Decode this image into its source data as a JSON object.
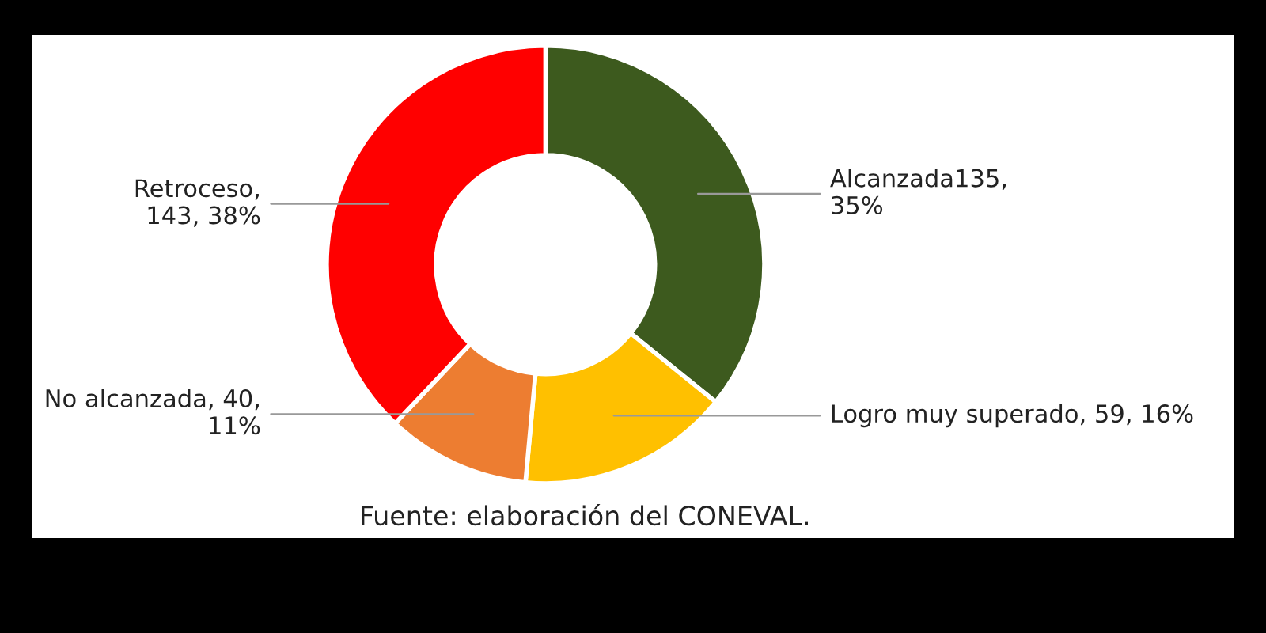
{
  "chart_data": {
    "type": "donut",
    "categories": [
      "Alcanzada",
      "Logro muy superado",
      "No alcanzada",
      "Retroceso"
    ],
    "values": [
      135,
      59,
      40,
      143
    ],
    "colors": [
      "#3d5a1e",
      "#ffc000",
      "#ed7d31",
      "#ff0000"
    ],
    "value_labels": [
      "135,\n35%",
      ", 59, 16%",
      ", 40,\n11%",
      ",\n143, 38%"
    ],
    "annotations": [
      "Fuente: elaboración del CONEVAL."
    ],
    "legend": false
  }
}
